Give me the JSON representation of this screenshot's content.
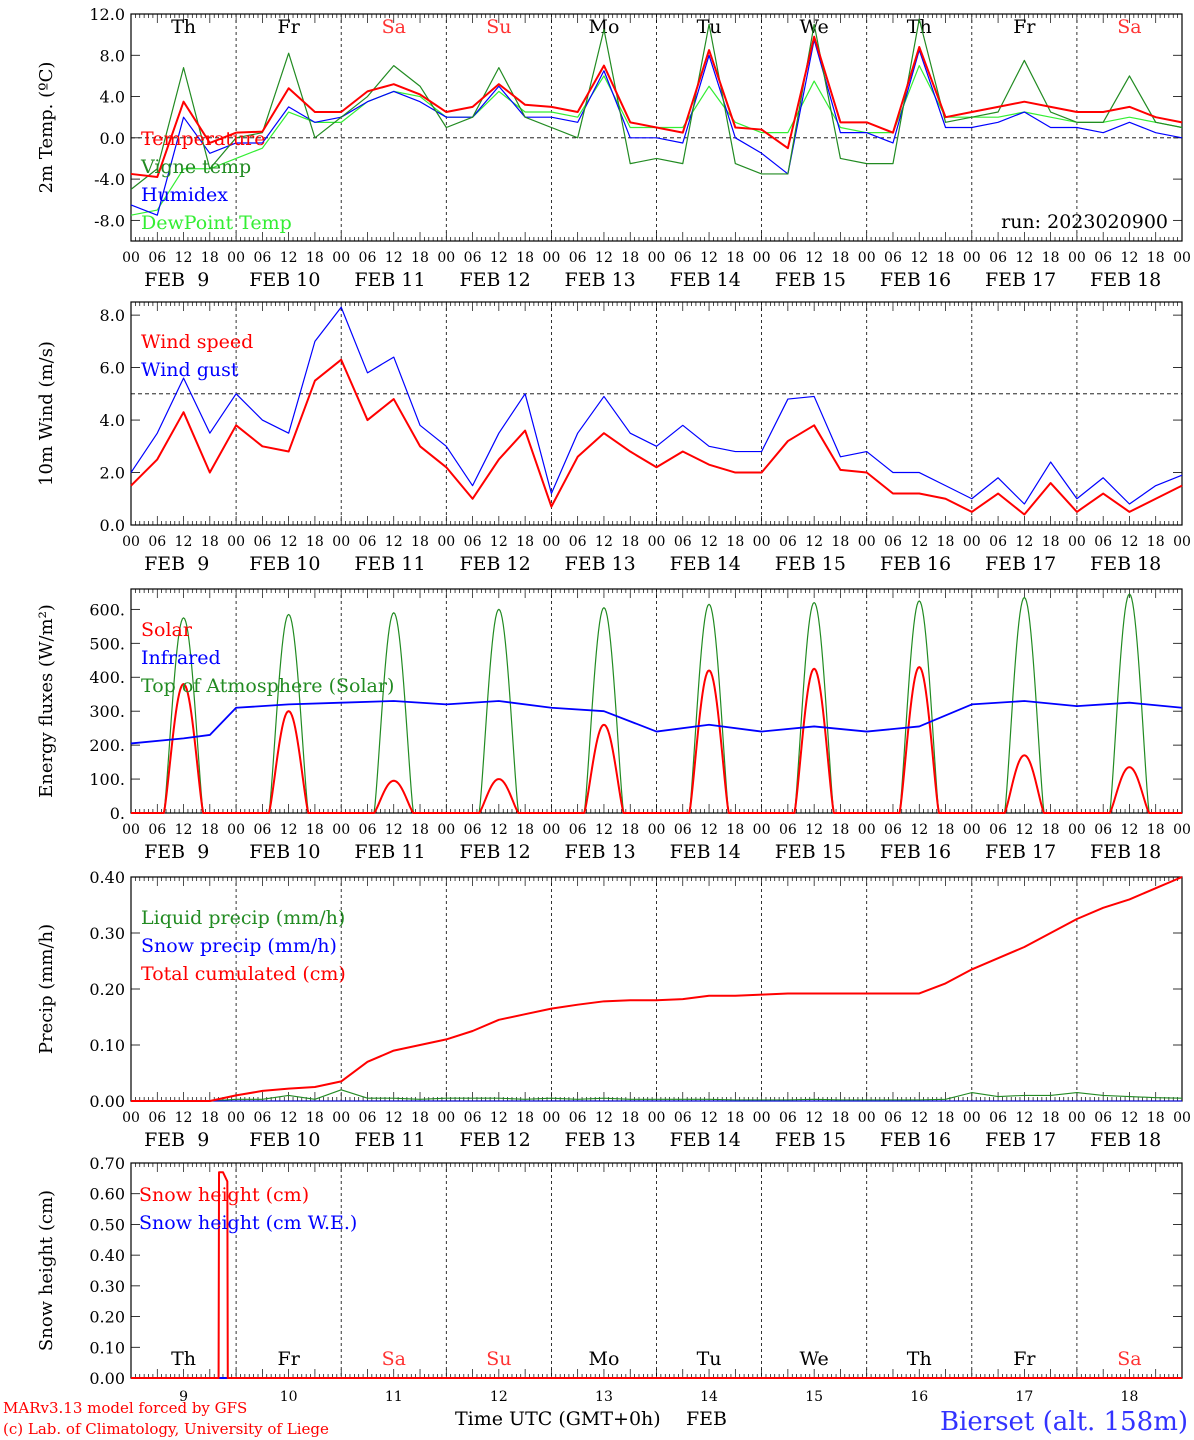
{
  "chart_data": [
    {
      "type": "line",
      "ylabel": "2m Temp. (ºC)",
      "ylim": [
        -10,
        12
      ],
      "yticks": [
        "12.0",
        "8.0",
        "4.0",
        "0.0",
        "-4.0",
        "-8.0"
      ],
      "run_label": "run: 2023020900",
      "day_of_week": [
        "Th",
        "Fr",
        "Sa",
        "Su",
        "Mo",
        "Tu",
        "We",
        "Th",
        "Fr",
        "Sa"
      ],
      "weekend_color": "#ff3333",
      "x_hours": [
        0,
        6,
        12,
        18,
        24,
        30,
        36,
        42,
        48,
        54,
        60,
        66,
        72,
        78,
        84,
        90,
        96,
        102,
        108,
        114,
        120,
        126,
        132,
        138,
        144,
        150,
        156,
        162,
        168,
        174,
        180,
        186,
        192,
        198,
        204,
        210,
        216,
        222,
        228,
        234,
        240
      ],
      "series": [
        {
          "name": "Temperature",
          "color": "#ff0000",
          "values": [
            -3.5,
            -3.8,
            3.5,
            -0.5,
            0.5,
            0.6,
            4.8,
            2.5,
            2.5,
            4.5,
            5.2,
            4.2,
            2.5,
            3.0,
            5.2,
            3.2,
            3.0,
            2.5,
            7.0,
            1.5,
            1.0,
            0.5,
            8.5,
            1.0,
            0.8,
            -1.0,
            9.8,
            1.5,
            1.5,
            0.5,
            8.8,
            2.0,
            2.5,
            3.0,
            3.5,
            3.0,
            2.5,
            2.5,
            3.0,
            2.0,
            1.5
          ]
        },
        {
          "name": "Vigne temp",
          "color": "#228b22",
          "values": [
            -5.0,
            -3.0,
            6.8,
            -3.0,
            0.0,
            0.5,
            8.2,
            0.0,
            2.0,
            4.0,
            7.0,
            5.0,
            1.0,
            2.0,
            6.8,
            2.0,
            1.0,
            0.0,
            10.5,
            -2.5,
            -2.0,
            -2.5,
            11.0,
            -2.5,
            -3.5,
            -3.5,
            11.0,
            -2.0,
            -2.5,
            -2.5,
            11.5,
            1.5,
            2.0,
            2.5,
            7.5,
            2.5,
            1.5,
            1.5,
            6.0,
            1.5,
            1.0
          ]
        },
        {
          "name": "Humidex",
          "color": "#0000ff",
          "values": [
            -6.5,
            -7.5,
            2.0,
            -1.5,
            -0.5,
            -0.5,
            3.0,
            1.5,
            2.0,
            3.5,
            4.5,
            3.5,
            2.0,
            2.0,
            5.0,
            2.0,
            2.0,
            1.5,
            6.5,
            0.0,
            0.0,
            -0.5,
            8.0,
            0.0,
            -1.5,
            -3.5,
            9.5,
            0.5,
            0.5,
            -0.5,
            8.5,
            1.0,
            1.0,
            1.5,
            2.5,
            1.0,
            1.0,
            0.5,
            1.5,
            0.5,
            0.0
          ]
        },
        {
          "name": "DewPoint Temp",
          "color": "#33ee33",
          "values": [
            -7.5,
            -7.0,
            -3.0,
            -3.0,
            -2.0,
            -1.0,
            2.5,
            1.5,
            1.5,
            3.5,
            4.5,
            4.0,
            2.0,
            2.0,
            4.5,
            2.5,
            2.5,
            2.0,
            6.0,
            1.0,
            1.0,
            1.0,
            5.0,
            1.5,
            0.5,
            0.5,
            5.5,
            1.0,
            0.5,
            0.5,
            7.0,
            2.0,
            2.0,
            2.0,
            2.5,
            2.0,
            1.5,
            1.5,
            2.0,
            1.5,
            1.0
          ]
        }
      ]
    },
    {
      "type": "line",
      "ylabel": "10m Wind (m/s)",
      "ylim": [
        0,
        8.5
      ],
      "yticks": [
        "8.0",
        "6.0",
        "4.0",
        "2.0",
        "0.0"
      ],
      "reference_line": 5.0,
      "x_hours": [
        0,
        6,
        12,
        18,
        24,
        30,
        36,
        42,
        48,
        54,
        60,
        66,
        72,
        78,
        84,
        90,
        96,
        102,
        108,
        114,
        120,
        126,
        132,
        138,
        144,
        150,
        156,
        162,
        168,
        174,
        180,
        186,
        192,
        198,
        204,
        210,
        216,
        222,
        228,
        234,
        240
      ],
      "series": [
        {
          "name": "Wind speed",
          "color": "#ff0000",
          "values": [
            1.5,
            2.5,
            4.3,
            2.0,
            3.8,
            3.0,
            2.8,
            5.5,
            6.3,
            4.0,
            4.8,
            3.0,
            2.2,
            1.0,
            2.5,
            3.6,
            0.7,
            2.6,
            3.5,
            2.8,
            2.2,
            2.8,
            2.3,
            2.0,
            2.0,
            3.2,
            3.8,
            2.1,
            2.0,
            1.2,
            1.2,
            1.0,
            0.5,
            1.2,
            0.4,
            1.6,
            0.5,
            1.2,
            0.5,
            1.0,
            1.5
          ]
        },
        {
          "name": "Wind gust",
          "color": "#0000ff",
          "values": [
            2.0,
            3.5,
            5.6,
            3.5,
            5.0,
            4.0,
            3.5,
            7.0,
            8.3,
            5.8,
            6.4,
            3.8,
            3.0,
            1.5,
            3.5,
            5.0,
            1.2,
            3.5,
            4.9,
            3.5,
            3.0,
            3.8,
            3.0,
            2.8,
            2.8,
            4.8,
            4.9,
            2.6,
            2.8,
            2.0,
            2.0,
            1.5,
            1.0,
            1.8,
            0.8,
            2.4,
            1.0,
            1.8,
            0.8,
            1.5,
            1.9
          ]
        }
      ]
    },
    {
      "type": "line",
      "ylabel": "Energy fluxes (W/m²)",
      "ylim": [
        0,
        660
      ],
      "yticks": [
        "600.",
        "500.",
        "400.",
        "300.",
        "200.",
        "100.",
        "0."
      ],
      "series": [
        {
          "name": "Solar",
          "color": "#ff0000",
          "daily_peaks": [
            380,
            300,
            95,
            100,
            260,
            420,
            425,
            430,
            170,
            135
          ]
        },
        {
          "name": "Infrared",
          "color": "#0000ff",
          "x_hours": [
            0,
            12,
            18,
            24,
            36,
            48,
            60,
            72,
            84,
            96,
            108,
            120,
            132,
            144,
            156,
            168,
            180,
            192,
            204,
            216,
            228,
            240
          ],
          "values": [
            205,
            220,
            230,
            310,
            320,
            325,
            330,
            320,
            330,
            310,
            300,
            240,
            260,
            240,
            255,
            240,
            255,
            320,
            330,
            315,
            325,
            310
          ]
        },
        {
          "name": "Top of Atmosphere (Solar)",
          "color": "#228b22",
          "daily_peaks": [
            575,
            585,
            590,
            600,
            605,
            615,
            620,
            625,
            635,
            645
          ]
        }
      ]
    },
    {
      "type": "line",
      "ylabel": "Precip (mm/h)",
      "ylim": [
        0,
        0.4
      ],
      "yticks": [
        "0.40",
        "0.30",
        "0.20",
        "0.10",
        "0.00"
      ],
      "x_hours": [
        0,
        6,
        12,
        18,
        24,
        30,
        36,
        42,
        48,
        54,
        60,
        66,
        72,
        78,
        84,
        90,
        96,
        102,
        108,
        114,
        120,
        126,
        132,
        138,
        144,
        150,
        156,
        162,
        168,
        174,
        180,
        186,
        192,
        198,
        204,
        210,
        216,
        222,
        228,
        234,
        240
      ],
      "series": [
        {
          "name": "Liquid precip (mm/h)",
          "color": "#228b22",
          "values": [
            0,
            0,
            0,
            0,
            0.003,
            0.003,
            0.01,
            0.003,
            0.02,
            0.005,
            0.005,
            0.003,
            0.005,
            0.005,
            0.005,
            0.003,
            0.005,
            0.003,
            0.005,
            0.003,
            0.003,
            0.003,
            0.003,
            0.002,
            0.002,
            0.002,
            0.003,
            0.002,
            0.002,
            0.002,
            0.002,
            0.003,
            0.015,
            0.008,
            0.01,
            0.01,
            0.015,
            0.01,
            0.008,
            0.006,
            0.005
          ]
        },
        {
          "name": "Snow precip (mm/h)",
          "color": "#0000ff",
          "values": [
            0,
            0,
            0,
            0,
            0,
            0,
            0,
            0,
            0,
            0,
            0,
            0,
            0,
            0,
            0,
            0,
            0,
            0,
            0,
            0,
            0,
            0,
            0,
            0,
            0,
            0,
            0,
            0,
            0,
            0,
            0,
            0,
            0,
            0,
            0,
            0,
            0,
            0,
            0,
            0,
            0
          ]
        },
        {
          "name": "Total cumulated (cm)",
          "color": "#ff0000",
          "values": [
            0,
            0,
            0,
            0,
            0.01,
            0.018,
            0.022,
            0.025,
            0.035,
            0.07,
            0.09,
            0.1,
            0.11,
            0.125,
            0.145,
            0.155,
            0.165,
            0.172,
            0.178,
            0.18,
            0.18,
            0.182,
            0.188,
            0.188,
            0.19,
            0.192,
            0.192,
            0.192,
            0.192,
            0.192,
            0.192,
            0.21,
            0.235,
            0.255,
            0.275,
            0.3,
            0.325,
            0.345,
            0.36,
            0.38,
            0.4
          ]
        }
      ]
    },
    {
      "type": "line",
      "ylabel": "Snow height (cm)",
      "ylim": [
        0,
        0.7
      ],
      "yticks": [
        "0.70",
        "0.60",
        "0.50",
        "0.40",
        "0.30",
        "0.20",
        "0.10",
        "0.00"
      ],
      "x_hours": [
        0,
        20,
        20.1,
        21,
        22,
        22.1,
        240
      ],
      "series": [
        {
          "name": "Snow height (cm)",
          "color": "#ff0000",
          "values": [
            0,
            0,
            0.67,
            0.67,
            0.64,
            0,
            0
          ]
        },
        {
          "name": "Snow height (cm W.E.)",
          "color": "#0000ff",
          "values": [
            0,
            0,
            0,
            0,
            0,
            0,
            0
          ]
        }
      ]
    }
  ],
  "x_axis": {
    "hour_ticks": [
      "00",
      "06",
      "12",
      "18"
    ],
    "date_labels": [
      "FEB  9",
      "FEB 10",
      "FEB 11",
      "FEB 12",
      "FEB 13",
      "FEB 14",
      "FEB 15",
      "FEB 16",
      "FEB 17",
      "FEB 18"
    ],
    "day_numbers": [
      "9",
      "10",
      "11",
      "12",
      "13",
      "14",
      "15",
      "16",
      "17",
      "18"
    ],
    "xlabel": "Time UTC (GMT+0h)",
    "xlabel_month": "FEB"
  },
  "footer": {
    "credit_line1": "MARv3.13 model forced by GFS",
    "credit_line2": "(c) Lab. of Climatology, University of Liege",
    "station": "Bierset (alt. 158m)"
  }
}
